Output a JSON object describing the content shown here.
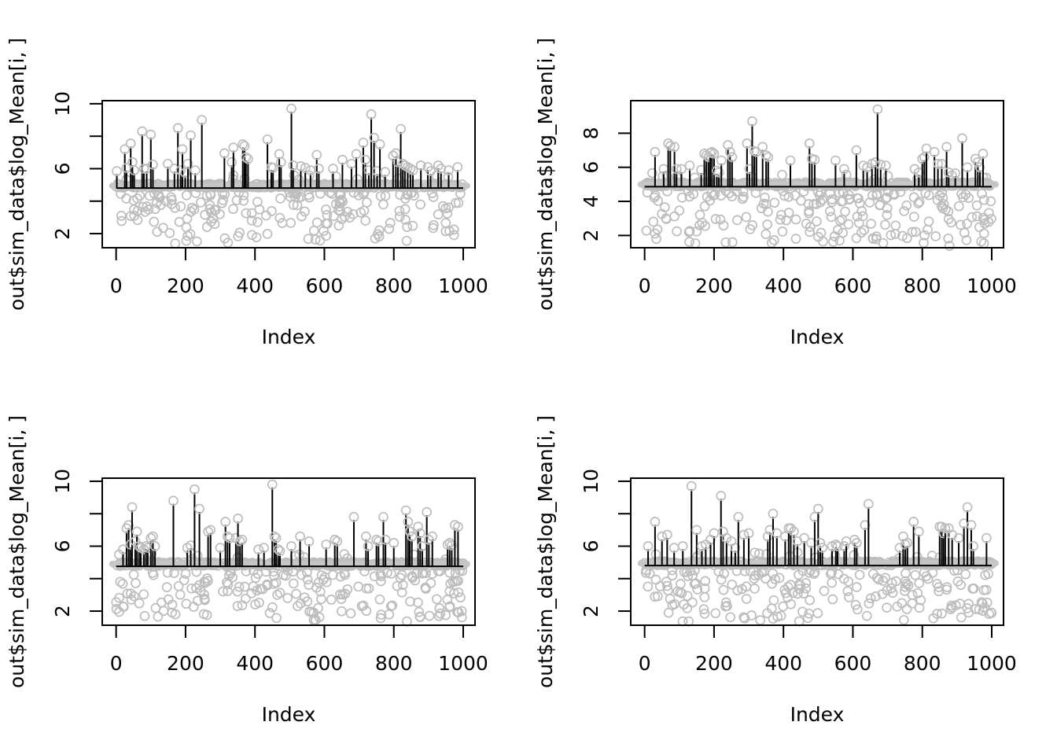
{
  "figure": {
    "background": "#ffffff"
  },
  "style": {
    "point_color": "#bdbdbd",
    "band_color": "#c6c6c6",
    "spike_color": "#000000",
    "axis_color": "#000000",
    "text_color": "#000000"
  },
  "chart_data": [
    {
      "id": "top-left",
      "type": "scatter",
      "title": "",
      "xlabel": "Index",
      "ylabel": "out$sim_data$log_Mean[i, ]",
      "xlim": [
        -40,
        1034
      ],
      "ylim": [
        1.13,
        10.19
      ],
      "x_ticks": [
        0,
        200,
        400,
        600,
        800,
        1000
      ],
      "x_tick_labels": [
        "0",
        "200",
        "400",
        "600",
        "800",
        "1000"
      ],
      "y_ticks": [
        2,
        4,
        6,
        8,
        10
      ],
      "y_tick_labels": [
        "2",
        "",
        "6",
        "",
        "10"
      ],
      "grid": false,
      "baseline": 4.95,
      "n_points": 1000,
      "scatter_gen": {
        "seed": 101,
        "low_n": 185,
        "band_n": 380,
        "near_n": 15,
        "low_min": 1.35
      },
      "spikes": [
        [
          2,
          5.85
        ],
        [
          25,
          7.2
        ],
        [
          30,
          6.05
        ],
        [
          42,
          7.55
        ],
        [
          47,
          6.4
        ],
        [
          52,
          5.9
        ],
        [
          75,
          8.3
        ],
        [
          80,
          6.0
        ],
        [
          88,
          6.0
        ],
        [
          100,
          8.1
        ],
        [
          106,
          6.25
        ],
        [
          149,
          6.3
        ],
        [
          168,
          6.0
        ],
        [
          178,
          8.5
        ],
        [
          186,
          5.9
        ],
        [
          191,
          7.2
        ],
        [
          199,
          5.75
        ],
        [
          207,
          6.3
        ],
        [
          215,
          8.05
        ],
        [
          228,
          5.9
        ],
        [
          247,
          9.0
        ],
        [
          312,
          6.95
        ],
        [
          333,
          6.4
        ],
        [
          338,
          7.3
        ],
        [
          365,
          7.5
        ],
        [
          370,
          7.4
        ],
        [
          374,
          6.7
        ],
        [
          380,
          6.6
        ],
        [
          436,
          7.8
        ],
        [
          447,
          6.1
        ],
        [
          452,
          6.05
        ],
        [
          470,
          6.9
        ],
        [
          475,
          6.4
        ],
        [
          505,
          9.7
        ],
        [
          510,
          6.2
        ],
        [
          532,
          6.15
        ],
        [
          545,
          6.05
        ],
        [
          560,
          5.9
        ],
        [
          578,
          6.85
        ],
        [
          584,
          6.0
        ],
        [
          625,
          6.0
        ],
        [
          652,
          6.55
        ],
        [
          678,
          6.3
        ],
        [
          692,
          6.9
        ],
        [
          712,
          7.6
        ],
        [
          718,
          6.55
        ],
        [
          728,
          5.9
        ],
        [
          735,
          9.35
        ],
        [
          743,
          7.9
        ],
        [
          752,
          5.85
        ],
        [
          760,
          7.5
        ],
        [
          775,
          5.8
        ],
        [
          798,
          6.8
        ],
        [
          806,
          6.95
        ],
        [
          812,
          6.4
        ],
        [
          820,
          8.45
        ],
        [
          826,
          6.3
        ],
        [
          832,
          6.2
        ],
        [
          840,
          6.1
        ],
        [
          848,
          6.0
        ],
        [
          855,
          5.9
        ],
        [
          878,
          6.2
        ],
        [
          898,
          6.1
        ],
        [
          906,
          5.85
        ],
        [
          928,
          6.2
        ],
        [
          936,
          6.0
        ],
        [
          958,
          5.9
        ],
        [
          984,
          6.1
        ]
      ]
    },
    {
      "id": "top-right",
      "type": "scatter",
      "title": "",
      "xlabel": "Index",
      "ylabel": "out$sim_data$log_Mean[i, ]",
      "xlim": [
        -40,
        1034
      ],
      "ylim": [
        1.28,
        9.91
      ],
      "x_ticks": [
        0,
        200,
        400,
        600,
        800,
        1000
      ],
      "x_tick_labels": [
        "0",
        "200",
        "400",
        "600",
        "800",
        "1000"
      ],
      "y_ticks": [
        2,
        4,
        6,
        8
      ],
      "y_tick_labels": [
        "2",
        "4",
        "6",
        "8"
      ],
      "grid": false,
      "baseline": 5.0,
      "n_points": 1000,
      "scatter_gen": {
        "seed": 202,
        "low_n": 205,
        "band_n": 360,
        "near_n": 15,
        "low_min": 1.35
      },
      "spikes": [
        [
          30,
          6.9
        ],
        [
          55,
          5.9
        ],
        [
          68,
          7.4
        ],
        [
          74,
          7.25
        ],
        [
          86,
          7.2
        ],
        [
          92,
          5.9
        ],
        [
          106,
          5.9
        ],
        [
          130,
          6.1
        ],
        [
          163,
          5.85
        ],
        [
          172,
          6.8
        ],
        [
          178,
          6.7
        ],
        [
          184,
          6.6
        ],
        [
          189,
          6.85
        ],
        [
          194,
          6.9
        ],
        [
          200,
          6.8
        ],
        [
          208,
          5.8
        ],
        [
          214,
          5.7
        ],
        [
          221,
          6.4
        ],
        [
          240,
          7.3
        ],
        [
          246,
          6.9
        ],
        [
          252,
          6.6
        ],
        [
          295,
          7.4
        ],
        [
          302,
          5.9
        ],
        [
          310,
          8.7
        ],
        [
          316,
          6.95
        ],
        [
          322,
          6.9
        ],
        [
          340,
          7.2
        ],
        [
          350,
          6.7
        ],
        [
          356,
          6.6
        ],
        [
          420,
          6.4
        ],
        [
          475,
          7.4
        ],
        [
          482,
          6.5
        ],
        [
          490,
          6.45
        ],
        [
          550,
          6.4
        ],
        [
          575,
          5.9
        ],
        [
          610,
          7.0
        ],
        [
          630,
          6.1
        ],
        [
          641,
          6.0
        ],
        [
          655,
          6.2
        ],
        [
          665,
          6.3
        ],
        [
          671,
          9.4
        ],
        [
          680,
          6.15
        ],
        [
          695,
          6.1
        ],
        [
          778,
          5.9
        ],
        [
          790,
          5.7
        ],
        [
          800,
          6.5
        ],
        [
          806,
          6.6
        ],
        [
          812,
          7.1
        ],
        [
          835,
          6.9
        ],
        [
          845,
          6.2
        ],
        [
          856,
          6.2
        ],
        [
          870,
          7.2
        ],
        [
          876,
          5.7
        ],
        [
          895,
          5.65
        ],
        [
          915,
          7.7
        ],
        [
          930,
          6.0
        ],
        [
          953,
          6.5
        ],
        [
          960,
          6.3
        ],
        [
          966,
          6.0
        ],
        [
          975,
          6.8
        ]
      ]
    },
    {
      "id": "bottom-left",
      "type": "scatter",
      "title": "",
      "xlabel": "Index",
      "ylabel": "out$sim_data$log_Mean[i, ]",
      "xlim": [
        -40,
        1034
      ],
      "ylim": [
        1.13,
        10.19
      ],
      "x_ticks": [
        0,
        200,
        400,
        600,
        800,
        1000
      ],
      "x_tick_labels": [
        "0",
        "200",
        "400",
        "600",
        "800",
        "1000"
      ],
      "y_ticks": [
        2,
        4,
        6,
        8,
        10
      ],
      "y_tick_labels": [
        "2",
        "",
        "6",
        "",
        "10"
      ],
      "grid": false,
      "baseline": 4.9,
      "n_points": 1000,
      "scatter_gen": {
        "seed": 303,
        "low_n": 200,
        "band_n": 380,
        "near_n": 15,
        "low_min": 1.35
      },
      "spikes": [
        [
          20,
          5.8
        ],
        [
          30,
          7.1
        ],
        [
          36,
          7.3
        ],
        [
          41,
          6.1
        ],
        [
          46,
          8.4
        ],
        [
          55,
          6.3
        ],
        [
          60,
          6.9
        ],
        [
          66,
          6.0
        ],
        [
          71,
          5.9
        ],
        [
          80,
          5.8
        ],
        [
          86,
          6.0
        ],
        [
          91,
          5.9
        ],
        [
          100,
          6.5
        ],
        [
          106,
          6.6
        ],
        [
          112,
          6.0
        ],
        [
          165,
          8.8
        ],
        [
          205,
          5.9
        ],
        [
          215,
          6.05
        ],
        [
          226,
          9.5
        ],
        [
          240,
          8.3
        ],
        [
          265,
          6.9
        ],
        [
          272,
          7.0
        ],
        [
          300,
          5.9
        ],
        [
          315,
          7.5
        ],
        [
          321,
          6.6
        ],
        [
          327,
          6.5
        ],
        [
          345,
          6.5
        ],
        [
          351,
          7.7
        ],
        [
          357,
          6.3
        ],
        [
          363,
          6.4
        ],
        [
          410,
          5.8
        ],
        [
          426,
          5.9
        ],
        [
          450,
          9.8
        ],
        [
          456,
          6.6
        ],
        [
          461,
          6.5
        ],
        [
          467,
          5.8
        ],
        [
          472,
          5.7
        ],
        [
          505,
          6.0
        ],
        [
          530,
          6.6
        ],
        [
          556,
          6.3
        ],
        [
          605,
          6.1
        ],
        [
          630,
          6.4
        ],
        [
          637,
          6.3
        ],
        [
          685,
          7.8
        ],
        [
          720,
          6.6
        ],
        [
          726,
          6.0
        ],
        [
          750,
          6.4
        ],
        [
          756,
          6.3
        ],
        [
          770,
          7.8
        ],
        [
          776,
          6.4
        ],
        [
          800,
          6.2
        ],
        [
          835,
          8.2
        ],
        [
          841,
          7.5
        ],
        [
          846,
          6.9
        ],
        [
          852,
          6.6
        ],
        [
          870,
          7.2
        ],
        [
          876,
          6.8
        ],
        [
          882,
          6.0
        ],
        [
          895,
          8.1
        ],
        [
          901,
          6.4
        ],
        [
          911,
          6.6
        ],
        [
          955,
          6.1
        ],
        [
          961,
          6.2
        ],
        [
          967,
          6.05
        ],
        [
          976,
          7.3
        ],
        [
          985,
          7.2
        ]
      ]
    },
    {
      "id": "bottom-right",
      "type": "scatter",
      "title": "",
      "xlabel": "Index",
      "ylabel": "out$sim_data$log_Mean[i, ]",
      "xlim": [
        -40,
        1034
      ],
      "ylim": [
        1.13,
        10.19
      ],
      "x_ticks": [
        0,
        200,
        400,
        600,
        800,
        1000
      ],
      "x_tick_labels": [
        "0",
        "200",
        "400",
        "600",
        "800",
        "1000"
      ],
      "y_ticks": [
        2,
        4,
        6,
        8,
        10
      ],
      "y_tick_labels": [
        "2",
        "",
        "6",
        "",
        "10"
      ],
      "grid": false,
      "baseline": 4.95,
      "n_points": 1000,
      "scatter_gen": {
        "seed": 404,
        "low_n": 195,
        "band_n": 380,
        "near_n": 15,
        "low_min": 1.35
      },
      "spikes": [
        [
          10,
          6.0
        ],
        [
          30,
          7.5
        ],
        [
          50,
          6.6
        ],
        [
          65,
          6.7
        ],
        [
          85,
          5.9
        ],
        [
          110,
          6.0
        ],
        [
          135,
          9.7
        ],
        [
          150,
          7.0
        ],
        [
          165,
          6.0
        ],
        [
          176,
          6.1
        ],
        [
          190,
          6.4
        ],
        [
          200,
          6.8
        ],
        [
          220,
          9.1
        ],
        [
          226,
          6.9
        ],
        [
          236,
          6.5
        ],
        [
          250,
          6.3
        ],
        [
          261,
          5.9
        ],
        [
          270,
          7.8
        ],
        [
          286,
          6.7
        ],
        [
          300,
          6.8
        ],
        [
          355,
          6.6
        ],
        [
          361,
          7.0
        ],
        [
          370,
          8.0
        ],
        [
          381,
          6.8
        ],
        [
          405,
          6.6
        ],
        [
          415,
          7.1
        ],
        [
          421,
          7.1
        ],
        [
          430,
          6.9
        ],
        [
          440,
          6.3
        ],
        [
          460,
          6.5
        ],
        [
          480,
          6.2
        ],
        [
          490,
          7.8
        ],
        [
          500,
          8.3
        ],
        [
          506,
          6.2
        ],
        [
          512,
          5.9
        ],
        [
          540,
          6.0
        ],
        [
          551,
          6.1
        ],
        [
          556,
          6.0
        ],
        [
          575,
          6.0
        ],
        [
          581,
          6.3
        ],
        [
          605,
          6.4
        ],
        [
          611,
          6.2
        ],
        [
          635,
          7.3
        ],
        [
          645,
          8.6
        ],
        [
          735,
          5.9
        ],
        [
          745,
          6.6
        ],
        [
          751,
          6.1
        ],
        [
          757,
          6.2
        ],
        [
          775,
          7.5
        ],
        [
          790,
          6.9
        ],
        [
          850,
          7.2
        ],
        [
          856,
          7.2
        ],
        [
          861,
          6.8
        ],
        [
          866,
          7.1
        ],
        [
          876,
          7.1
        ],
        [
          886,
          6.7
        ],
        [
          905,
          6.5
        ],
        [
          920,
          7.4
        ],
        [
          930,
          8.4
        ],
        [
          941,
          7.3
        ],
        [
          947,
          6.0
        ],
        [
          985,
          6.5
        ]
      ]
    }
  ]
}
